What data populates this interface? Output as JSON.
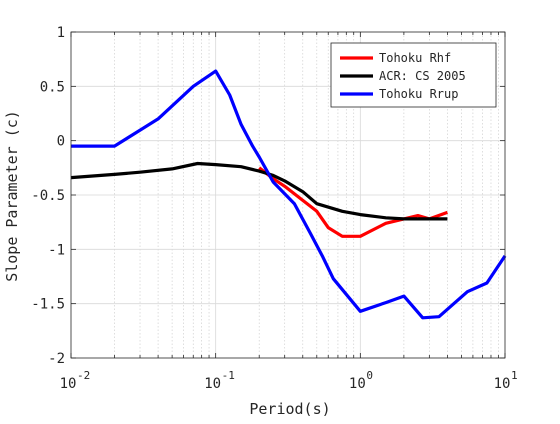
{
  "chart_data": {
    "type": "line",
    "title": "",
    "xlabel": "Period(s)",
    "ylabel": "Slope Parameter (c)",
    "xscale": "log",
    "xlim": [
      0.01,
      10
    ],
    "ylim": [
      -2,
      1
    ],
    "x_ticks": [
      0.01,
      0.1,
      1,
      10
    ],
    "x_tick_labels": [
      {
        "base": "10",
        "exp": "-2"
      },
      {
        "base": "10",
        "exp": "-1"
      },
      {
        "base": "10",
        "exp": "0"
      },
      {
        "base": "10",
        "exp": "1"
      }
    ],
    "y_ticks": [
      -2,
      -1.5,
      -1,
      -0.5,
      0,
      0.5,
      1
    ],
    "y_tick_labels": [
      "-2",
      "-1.5",
      "-1",
      "-0.5",
      "0",
      "0.5",
      "1"
    ],
    "grid": true,
    "legend_position": "top-right",
    "series": [
      {
        "name": "Tohoku Rhf",
        "color": "#ff0000",
        "x": [
          0.2,
          0.25,
          0.3,
          0.4,
          0.5,
          0.6,
          0.75,
          1.0,
          1.5,
          2.0,
          2.5,
          3.0,
          4.0
        ],
        "y": [
          -0.25,
          -0.35,
          -0.42,
          -0.55,
          -0.65,
          -0.8,
          -0.88,
          -0.88,
          -0.76,
          -0.72,
          -0.69,
          -0.72,
          -0.66
        ]
      },
      {
        "name": "ACR: CS 2005",
        "color": "#000000",
        "x": [
          0.01,
          0.02,
          0.03,
          0.05,
          0.075,
          0.1,
          0.15,
          0.2,
          0.25,
          0.3,
          0.4,
          0.5,
          0.75,
          1.0,
          1.5,
          2.0,
          3.0,
          4.0
        ],
        "y": [
          -0.34,
          -0.31,
          -0.29,
          -0.26,
          -0.21,
          -0.22,
          -0.24,
          -0.28,
          -0.32,
          -0.37,
          -0.47,
          -0.58,
          -0.65,
          -0.68,
          -0.71,
          -0.72,
          -0.72,
          -0.72
        ]
      },
      {
        "name": "Tohoku Rrup",
        "color": "#0000ff",
        "x": [
          0.01,
          0.02,
          0.04,
          0.07,
          0.1,
          0.125,
          0.15,
          0.18,
          0.2,
          0.25,
          0.35,
          0.45,
          0.55,
          0.65,
          1.0,
          1.5,
          2.0,
          2.7,
          3.5,
          5.5,
          7.5,
          10.0
        ],
        "y": [
          -0.05,
          -0.05,
          0.2,
          0.5,
          0.64,
          0.42,
          0.15,
          -0.05,
          -0.15,
          -0.38,
          -0.58,
          -0.85,
          -1.07,
          -1.27,
          -1.57,
          -1.49,
          -1.43,
          -1.63,
          -1.62,
          -1.39,
          -1.31,
          -1.06
        ]
      }
    ]
  }
}
